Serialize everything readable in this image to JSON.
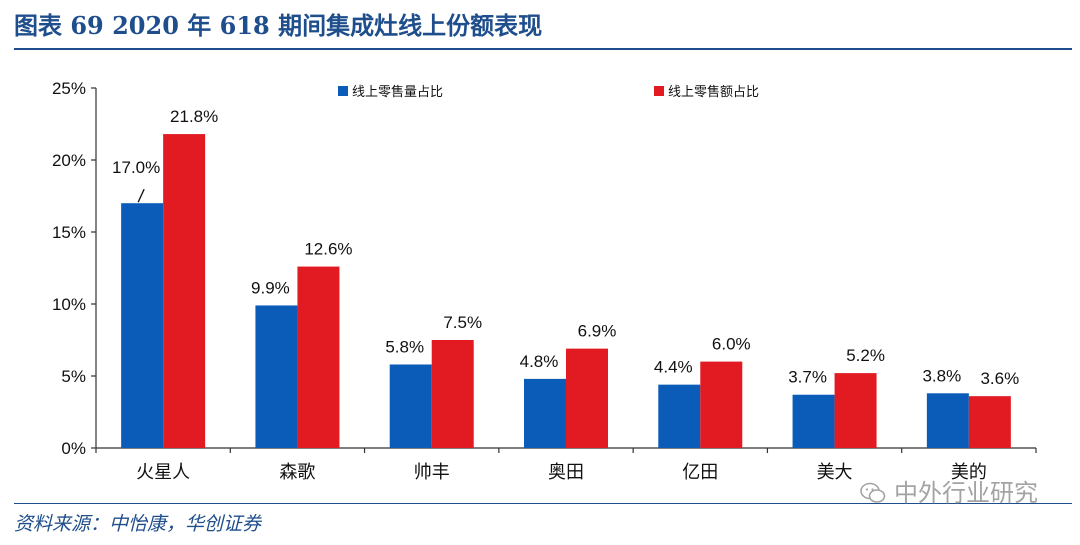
{
  "header": {
    "title": "图表 69   2020 年 618 期间集成灶线上份额表现"
  },
  "footer": {
    "source": "资料来源：中怡康，华创证券",
    "watermark": "中外行业研究"
  },
  "chart_data": {
    "type": "bar",
    "categories": [
      "火星人",
      "森歌",
      "帅丰",
      "奥田",
      "亿田",
      "美大",
      "美的"
    ],
    "series": [
      {
        "name": "线上零售量占比",
        "color": "#0b5cb8",
        "values": [
          17.0,
          9.9,
          5.8,
          4.8,
          4.4,
          3.7,
          3.8
        ]
      },
      {
        "name": "线上零售额占比",
        "color": "#e21b23",
        "values": [
          21.8,
          12.6,
          7.5,
          6.9,
          6.0,
          5.2,
          3.6
        ]
      }
    ],
    "ylim": [
      0,
      25
    ],
    "yticks": [
      0,
      5,
      10,
      15,
      20,
      25
    ],
    "ytick_labels": [
      "0%",
      "5%",
      "10%",
      "15%",
      "20%",
      "25%"
    ],
    "value_labels": [
      [
        "17.0%",
        "9.9%",
        "5.8%",
        "4.8%",
        "4.4%",
        "3.7%",
        "3.8%"
      ],
      [
        "21.8%",
        "12.6%",
        "7.5%",
        "6.9%",
        "6.0%",
        "5.2%",
        "3.6%"
      ]
    ],
    "legend_position": "top",
    "grid": false
  }
}
